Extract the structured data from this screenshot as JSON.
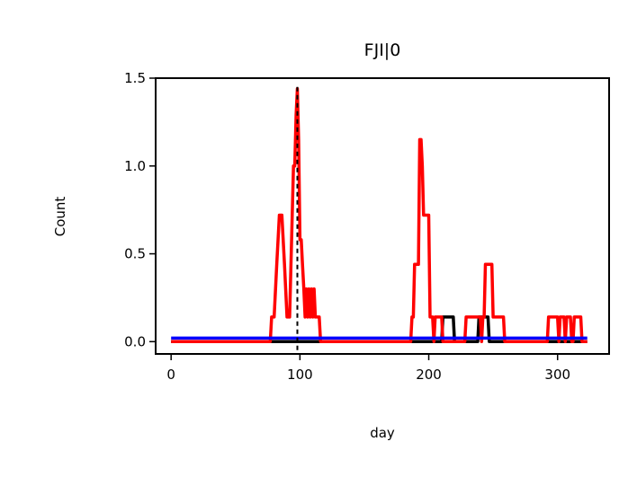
{
  "chart_data": {
    "type": "line",
    "title": "FJI|0",
    "xlabel": "day",
    "ylabel": "Count",
    "xlim": [
      -12,
      340
    ],
    "ylim": [
      -0.07,
      1.5
    ],
    "xticks": [
      0,
      100,
      200,
      300
    ],
    "yticks": [
      0.0,
      0.5,
      1.0,
      1.5
    ],
    "xtick_labels": [
      "0",
      "100",
      "200",
      "300"
    ],
    "ytick_labels": [
      "0.0",
      "0.5",
      "1.0",
      "1.5"
    ],
    "grid": false,
    "vline": {
      "x": 98,
      "style": "dashed",
      "color": "#000000"
    },
    "series": [
      {
        "color": "#000000",
        "x": [
          0,
          210,
          211,
          212,
          218,
          219,
          220,
          238,
          239,
          240,
          245,
          246,
          247,
          323
        ],
        "y": [
          0,
          0,
          0.14,
          0.14,
          0.14,
          0.14,
          0,
          0,
          0.14,
          0.14,
          0.14,
          0.14,
          0,
          0
        ]
      },
      {
        "color": "#ff0000",
        "x": [
          0,
          77,
          78,
          80,
          82,
          84,
          86,
          88,
          90,
          92,
          94,
          95,
          96,
          97,
          98,
          99,
          100,
          101,
          102,
          103,
          104,
          105,
          106,
          107,
          108,
          109,
          110,
          111,
          112,
          113,
          114,
          115,
          116,
          118,
          186,
          187,
          188,
          189,
          190,
          191,
          192,
          193,
          194,
          195,
          196,
          197,
          198,
          199,
          200,
          201,
          202,
          203,
          204,
          205,
          206,
          207,
          208,
          209,
          210,
          211,
          212,
          228,
          229,
          230,
          240,
          241,
          242,
          243,
          244,
          245,
          246,
          247,
          248,
          249,
          250,
          251,
          252,
          253,
          254,
          255,
          256,
          257,
          258,
          259,
          260,
          292,
          293,
          294,
          300,
          301,
          302,
          303,
          304,
          305,
          306,
          307,
          308,
          309,
          310,
          311,
          312,
          313,
          314,
          315,
          316,
          317,
          318,
          319,
          320,
          321,
          322,
          323
        ],
        "y": [
          0,
          0,
          0.14,
          0.14,
          0.44,
          0.72,
          0.72,
          0.44,
          0.14,
          0.14,
          0.72,
          1.0,
          1.0,
          1.29,
          1.44,
          1.15,
          0.58,
          0.58,
          0.44,
          0.3,
          0.14,
          0.3,
          0.14,
          0.3,
          0.14,
          0.3,
          0.14,
          0.3,
          0.14,
          0.14,
          0.14,
          0.14,
          0.0,
          0.0,
          0.0,
          0.14,
          0.14,
          0.44,
          0.44,
          0.44,
          0.44,
          1.15,
          1.15,
          1.0,
          0.72,
          0.72,
          0.72,
          0.72,
          0.72,
          0.14,
          0.14,
          0.14,
          0.0,
          0.14,
          0.14,
          0.14,
          0.14,
          0.14,
          0.14,
          0.0,
          0.0,
          0.0,
          0.14,
          0.14,
          0.14,
          0.0,
          0.14,
          0.14,
          0.44,
          0.44,
          0.44,
          0.44,
          0.44,
          0.44,
          0.14,
          0.14,
          0.14,
          0.14,
          0.14,
          0.14,
          0.14,
          0.14,
          0.14,
          0.0,
          0.0,
          0.0,
          0.14,
          0.14,
          0.14,
          0.0,
          0.14,
          0.14,
          0.14,
          0.14,
          0.0,
          0.14,
          0.14,
          0.14,
          0.14,
          0.0,
          0.0,
          0.14,
          0.14,
          0.14,
          0.14,
          0.14,
          0.14,
          0.0,
          0.0,
          0.0,
          0.0,
          0.0
        ]
      },
      {
        "color": "#0000ff",
        "x": [
          0,
          323
        ],
        "y": [
          0.02,
          0.02
        ]
      }
    ]
  }
}
